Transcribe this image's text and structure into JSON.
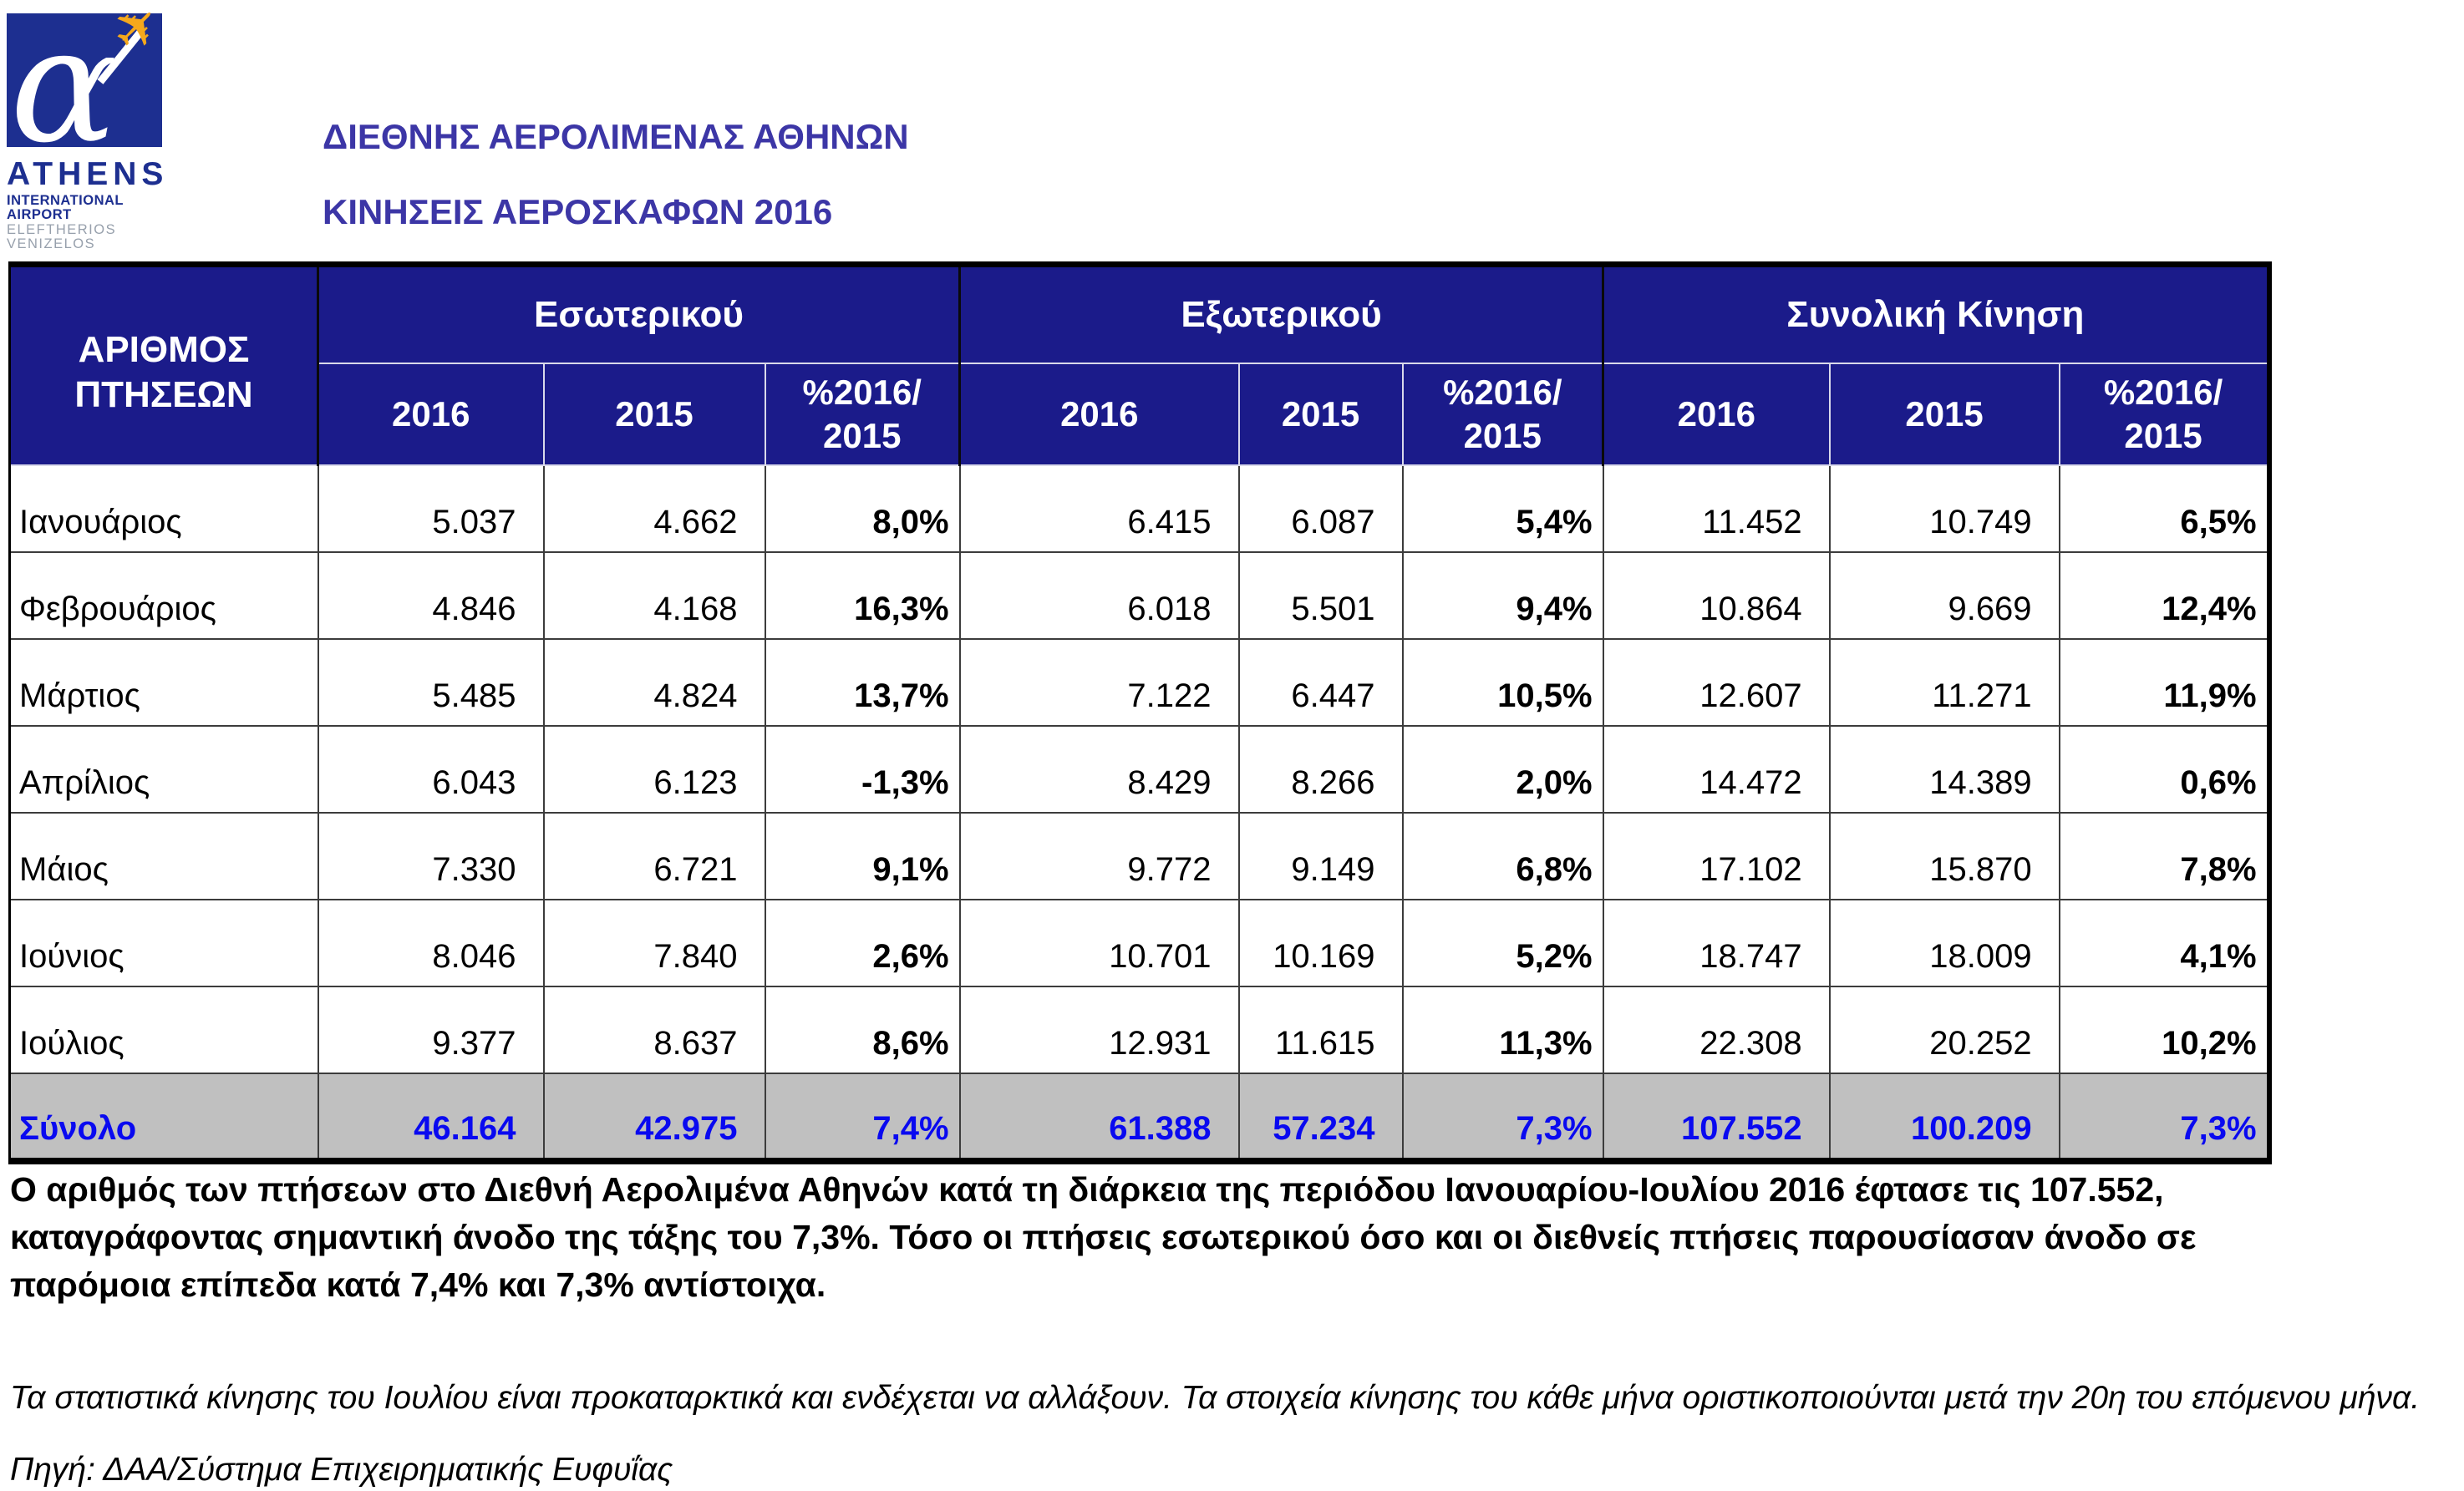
{
  "logo": {
    "athens": "ATHENS",
    "line2": "INTERNATIONAL AIRPORT",
    "line3": "ELEFTHERIOS VENIZELOS"
  },
  "header": {
    "title_line1": "ΔΙΕΘΝΗΣ ΑΕΡΟΛΙΜΕΝΑΣ ΑΘΗΝΩΝ",
    "title_line2": "ΚΙΝΗΣΕΙΣ ΑΕΡΟΣΚΑΦΩΝ 2016"
  },
  "table": {
    "row_header": "ΑΡΙΘΜΟΣ ΠΤΗΣΕΩΝ",
    "groups": [
      {
        "label": "Εσωτερικού"
      },
      {
        "label": "Εξωτερικού"
      },
      {
        "label": "Συνολική Κίνηση"
      }
    ],
    "sub_headers": {
      "y2016": "2016",
      "y2015": "2015",
      "pct": "%2016/\n2015"
    },
    "rows": [
      {
        "label": "Ιανουάριος",
        "cells": [
          "5.037",
          "4.662",
          "8,0%",
          "6.415",
          "6.087",
          "5,4%",
          "11.452",
          "10.749",
          "6,5%"
        ]
      },
      {
        "label": "Φεβρουάριος",
        "cells": [
          "4.846",
          "4.168",
          "16,3%",
          "6.018",
          "5.501",
          "9,4%",
          "10.864",
          "9.669",
          "12,4%"
        ]
      },
      {
        "label": "Μάρτιος",
        "cells": [
          "5.485",
          "4.824",
          "13,7%",
          "7.122",
          "6.447",
          "10,5%",
          "12.607",
          "11.271",
          "11,9%"
        ]
      },
      {
        "label": "Απρίλιος",
        "cells": [
          "6.043",
          "6.123",
          "-1,3%",
          "8.429",
          "8.266",
          "2,0%",
          "14.472",
          "14.389",
          "0,6%"
        ]
      },
      {
        "label": "Μάιος",
        "cells": [
          "7.330",
          "6.721",
          "9,1%",
          "9.772",
          "9.149",
          "6,8%",
          "17.102",
          "15.870",
          "7,8%"
        ]
      },
      {
        "label": "Ιούνιος",
        "cells": [
          "8.046",
          "7.840",
          "2,6%",
          "10.701",
          "10.169",
          "5,2%",
          "18.747",
          "18.009",
          "4,1%"
        ]
      },
      {
        "label": "Ιούλιος",
        "cells": [
          "9.377",
          "8.637",
          "8,6%",
          "12.931",
          "11.615",
          "11,3%",
          "22.308",
          "20.252",
          "10,2%"
        ]
      }
    ],
    "total_row": {
      "label": "Σύνολο",
      "cells": [
        "46.164",
        "42.975",
        "7,4%",
        "61.388",
        "57.234",
        "7,3%",
        "107.552",
        "100.209",
        "7,3%"
      ]
    }
  },
  "chart_data": {
    "type": "table",
    "title": "ΚΙΝΗΣΕΙΣ ΑΕΡΟΣΚΑΦΩΝ 2016",
    "categories": [
      "Ιανουάριος",
      "Φεβρουάριος",
      "Μάρτιος",
      "Απρίλιος",
      "Μάιος",
      "Ιούνιος",
      "Ιούλιος",
      "Σύνολο"
    ],
    "series": [
      {
        "name": "Εσωτερικού 2016",
        "values": [
          5037,
          4846,
          5485,
          6043,
          7330,
          8046,
          9377,
          46164
        ]
      },
      {
        "name": "Εσωτερικού 2015",
        "values": [
          4662,
          4168,
          4824,
          6123,
          6721,
          7840,
          8637,
          42975
        ]
      },
      {
        "name": "Εσωτερικού %2016/2015",
        "values": [
          8.0,
          16.3,
          13.7,
          -1.3,
          9.1,
          2.6,
          8.6,
          7.4
        ]
      },
      {
        "name": "Εξωτερικού 2016",
        "values": [
          6415,
          6018,
          7122,
          8429,
          9772,
          10701,
          12931,
          61388
        ]
      },
      {
        "name": "Εξωτερικού 2015",
        "values": [
          6087,
          5501,
          6447,
          8266,
          9149,
          10169,
          11615,
          57234
        ]
      },
      {
        "name": "Εξωτερικού %2016/2015",
        "values": [
          5.4,
          9.4,
          10.5,
          2.0,
          6.8,
          5.2,
          11.3,
          7.3
        ]
      },
      {
        "name": "Συνολική Κίνηση 2016",
        "values": [
          11452,
          10864,
          12607,
          14472,
          17102,
          18747,
          22308,
          107552
        ]
      },
      {
        "name": "Συνολική Κίνηση 2015",
        "values": [
          10749,
          9669,
          11271,
          14389,
          15870,
          18009,
          20252,
          100209
        ]
      },
      {
        "name": "Συνολική Κίνηση %2016/2015",
        "values": [
          6.5,
          12.4,
          11.9,
          0.6,
          7.8,
          4.1,
          10.2,
          7.3
        ]
      }
    ]
  },
  "notes": {
    "summary_lines": [
      "Ο αριθμός των πτήσεων στο Διεθνή Αερολιμένα Αθηνών κατά τη διάρκεια της περιόδου Ιανουαρίου-Ιουλίου 2016  έφτασε τις 107.552,",
      "καταγράφοντας σημαντική άνοδο της τάξης του 7,3%. Τόσο οι πτήσεις εσωτερικού όσο και οι διεθνείς πτήσεις παρουσίασαν άνοδο σε",
      "παρόμοια επίπεδα κατά 7,4% και 7,3% αντίστοιχα."
    ],
    "disclaimer": "Τα στατιστικά κίνησης του Ιουλίου είναι προκαταρκτικά και ενδέχεται να αλλάξουν.  Τα στοιχεία κίνησης του κάθε μήνα οριστικοποιούνται μετά την 20η του επόμενου μήνα.",
    "source": "Πηγή: ΔΑΑ/Σύστημα Επιχειρηματικής Ευφυΐας"
  },
  "colors": {
    "header_navy": "#1b1b8a",
    "logo_blue": "#1d2f90",
    "title_blue": "#3c36a6",
    "total_row_bg": "#c0c0c0",
    "total_row_text": "#0909f0",
    "plane_orange": "#f5a81c",
    "logo_gray_text": "#97a0ac"
  }
}
